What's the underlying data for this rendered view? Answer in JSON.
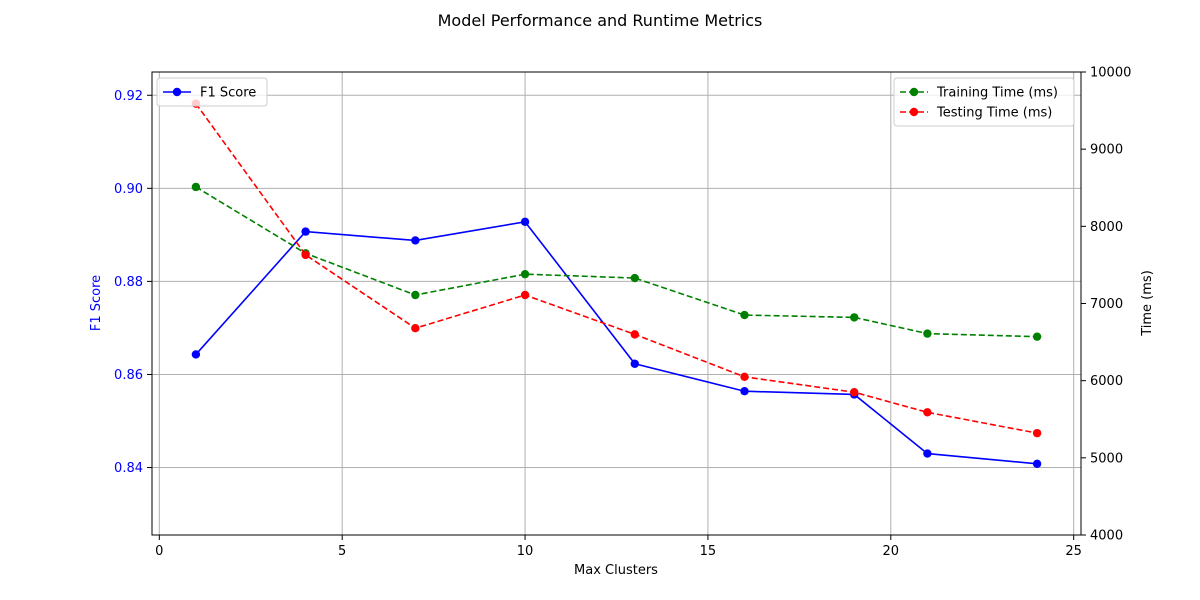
{
  "chart_data": {
    "type": "line",
    "title": "Model Performance and Runtime Metrics",
    "xlabel": "Max Clusters",
    "ylabel_left": "F1 Score",
    "ylabel_right": "Time (ms)",
    "x": [
      1,
      4,
      7,
      10,
      13,
      16,
      19,
      21,
      24
    ],
    "xlim": [
      -0.2,
      25.2
    ],
    "ylim_left": [
      0.8255,
      0.925
    ],
    "ylim_right": [
      4000,
      10000
    ],
    "xticks": [
      0,
      5,
      10,
      15,
      20,
      25
    ],
    "yticks_left": [
      0.84,
      0.86,
      0.88,
      0.9,
      0.92
    ],
    "ytick_labels_left": [
      "0.84",
      "0.86",
      "0.88",
      "0.90",
      "0.92"
    ],
    "yticks_right": [
      4000,
      5000,
      6000,
      7000,
      8000,
      9000,
      10000
    ],
    "grid": true,
    "series": [
      {
        "name": "F1 Score",
        "axis": "left",
        "color": "#0000ff",
        "style": "solid",
        "values": [
          0.8643,
          0.8907,
          0.8888,
          0.8928,
          0.8623,
          0.8564,
          0.8557,
          0.843,
          0.8408
        ]
      },
      {
        "name": "Training Time (ms)",
        "axis": "right",
        "color": "#008000",
        "style": "dashed",
        "values": [
          8510,
          7650,
          7110,
          7380,
          7330,
          6850,
          6820,
          6610,
          6570
        ]
      },
      {
        "name": "Testing Time (ms)",
        "axis": "right",
        "color": "#ff0000",
        "style": "dashed",
        "values": [
          9590,
          7630,
          6680,
          7110,
          6600,
          6050,
          5850,
          5590,
          5320
        ]
      }
    ],
    "legend_left": {
      "placement": "upper-left",
      "entries": [
        "F1 Score"
      ]
    },
    "legend_right": {
      "placement": "upper-right",
      "entries": [
        "Training Time (ms)",
        "Testing Time (ms)"
      ]
    },
    "colors": {
      "left_axis": "#0000ff",
      "right_axis": "#000000",
      "grid": "#b0b0b0"
    }
  }
}
